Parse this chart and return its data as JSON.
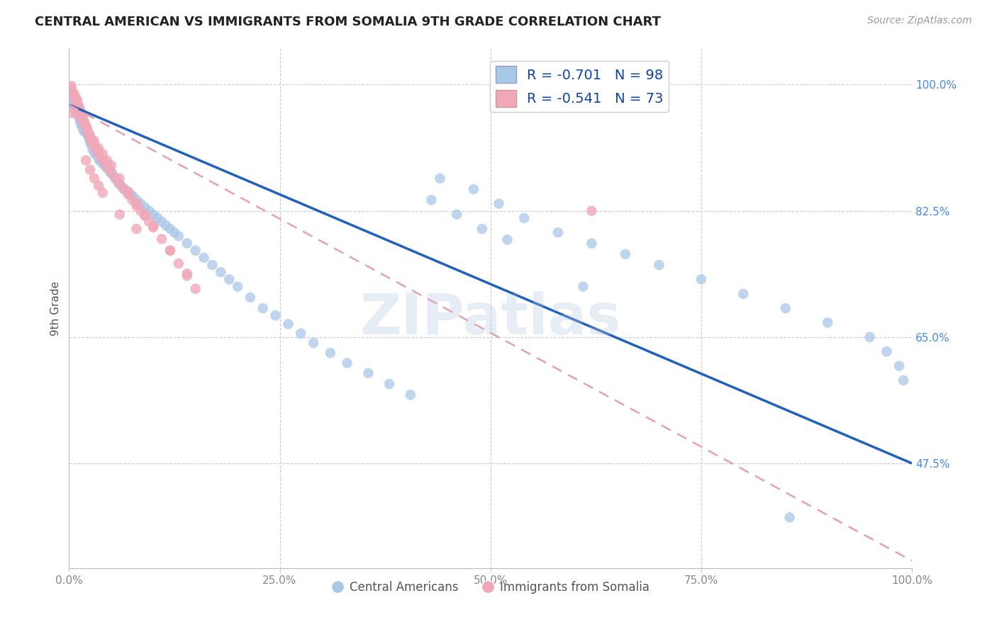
{
  "title": "CENTRAL AMERICAN VS IMMIGRANTS FROM SOMALIA 9TH GRADE CORRELATION CHART",
  "source": "Source: ZipAtlas.com",
  "ylabel": "9th Grade",
  "xlim": [
    0.0,
    1.0
  ],
  "ylim": [
    0.33,
    1.05
  ],
  "ytick_vals": [
    0.475,
    0.65,
    0.825,
    1.0
  ],
  "ytick_labels": [
    "47.5%",
    "65.0%",
    "82.5%",
    "100.0%"
  ],
  "R_blue": -0.701,
  "N_blue": 98,
  "R_pink": -0.541,
  "N_pink": 73,
  "blue_color": "#a8c8e8",
  "pink_color": "#f0a8b8",
  "trendline_blue": "#2060c0",
  "trendline_pink": "#e8a0b0",
  "watermark": "ZIPatlas",
  "blue_scatter_x": [
    0.002,
    0.003,
    0.004,
    0.005,
    0.006,
    0.007,
    0.008,
    0.009,
    0.01,
    0.011,
    0.012,
    0.013,
    0.014,
    0.015,
    0.016,
    0.017,
    0.018,
    0.019,
    0.02,
    0.021,
    0.022,
    0.023,
    0.024,
    0.025,
    0.026,
    0.027,
    0.028,
    0.03,
    0.032,
    0.034,
    0.036,
    0.038,
    0.04,
    0.042,
    0.044,
    0.046,
    0.048,
    0.05,
    0.052,
    0.055,
    0.058,
    0.06,
    0.063,
    0.066,
    0.07,
    0.073,
    0.076,
    0.08,
    0.085,
    0.09,
    0.095,
    0.1,
    0.105,
    0.11,
    0.115,
    0.12,
    0.125,
    0.13,
    0.14,
    0.15,
    0.16,
    0.17,
    0.18,
    0.19,
    0.2,
    0.215,
    0.23,
    0.245,
    0.26,
    0.275,
    0.29,
    0.31,
    0.33,
    0.355,
    0.38,
    0.405,
    0.43,
    0.46,
    0.49,
    0.52,
    0.44,
    0.48,
    0.51,
    0.54,
    0.58,
    0.62,
    0.66,
    0.7,
    0.75,
    0.8,
    0.85,
    0.9,
    0.95,
    0.97,
    0.985,
    0.99,
    0.61,
    0.855
  ],
  "blue_scatter_y": [
    0.98,
    0.985,
    0.975,
    0.97,
    0.975,
    0.965,
    0.97,
    0.96,
    0.965,
    0.96,
    0.955,
    0.95,
    0.945,
    0.95,
    0.94,
    0.945,
    0.935,
    0.935,
    0.94,
    0.935,
    0.93,
    0.93,
    0.925,
    0.92,
    0.92,
    0.915,
    0.91,
    0.905,
    0.905,
    0.9,
    0.895,
    0.895,
    0.89,
    0.89,
    0.885,
    0.885,
    0.88,
    0.878,
    0.875,
    0.87,
    0.865,
    0.862,
    0.858,
    0.855,
    0.85,
    0.848,
    0.845,
    0.84,
    0.835,
    0.83,
    0.825,
    0.82,
    0.815,
    0.81,
    0.805,
    0.8,
    0.795,
    0.79,
    0.78,
    0.77,
    0.76,
    0.75,
    0.74,
    0.73,
    0.72,
    0.705,
    0.69,
    0.68,
    0.668,
    0.655,
    0.642,
    0.628,
    0.614,
    0.6,
    0.585,
    0.57,
    0.84,
    0.82,
    0.8,
    0.785,
    0.87,
    0.855,
    0.835,
    0.815,
    0.795,
    0.78,
    0.765,
    0.75,
    0.73,
    0.71,
    0.69,
    0.67,
    0.65,
    0.63,
    0.61,
    0.59,
    0.72,
    0.4
  ],
  "pink_scatter_x": [
    0.002,
    0.003,
    0.004,
    0.005,
    0.006,
    0.007,
    0.008,
    0.009,
    0.01,
    0.011,
    0.012,
    0.013,
    0.014,
    0.015,
    0.016,
    0.017,
    0.018,
    0.019,
    0.02,
    0.021,
    0.022,
    0.023,
    0.024,
    0.026,
    0.028,
    0.03,
    0.032,
    0.035,
    0.038,
    0.042,
    0.046,
    0.05,
    0.055,
    0.06,
    0.065,
    0.07,
    0.075,
    0.08,
    0.085,
    0.09,
    0.095,
    0.1,
    0.11,
    0.12,
    0.13,
    0.14,
    0.15,
    0.005,
    0.008,
    0.012,
    0.015,
    0.02,
    0.025,
    0.03,
    0.035,
    0.04,
    0.045,
    0.05,
    0.06,
    0.07,
    0.08,
    0.09,
    0.1,
    0.12,
    0.14,
    0.02,
    0.025,
    0.03,
    0.035,
    0.04,
    0.06,
    0.08,
    0.62
  ],
  "pink_scatter_y": [
    0.995,
    0.998,
    0.99,
    0.985,
    0.988,
    0.98,
    0.982,
    0.975,
    0.978,
    0.972,
    0.968,
    0.965,
    0.962,
    0.958,
    0.955,
    0.952,
    0.948,
    0.945,
    0.942,
    0.94,
    0.936,
    0.932,
    0.928,
    0.924,
    0.92,
    0.915,
    0.91,
    0.905,
    0.898,
    0.892,
    0.885,
    0.878,
    0.87,
    0.862,
    0.855,
    0.848,
    0.84,
    0.832,
    0.825,
    0.818,
    0.81,
    0.802,
    0.786,
    0.77,
    0.752,
    0.735,
    0.717,
    0.96,
    0.968,
    0.958,
    0.952,
    0.942,
    0.93,
    0.922,
    0.912,
    0.904,
    0.895,
    0.888,
    0.87,
    0.852,
    0.836,
    0.82,
    0.804,
    0.77,
    0.738,
    0.895,
    0.882,
    0.87,
    0.86,
    0.85,
    0.82,
    0.8,
    0.825
  ],
  "blue_trend_x": [
    0.0,
    1.0
  ],
  "blue_trend_y": [
    0.972,
    0.475
  ],
  "pink_trend_x": [
    0.0,
    1.0
  ],
  "pink_trend_y": [
    0.972,
    0.34
  ]
}
